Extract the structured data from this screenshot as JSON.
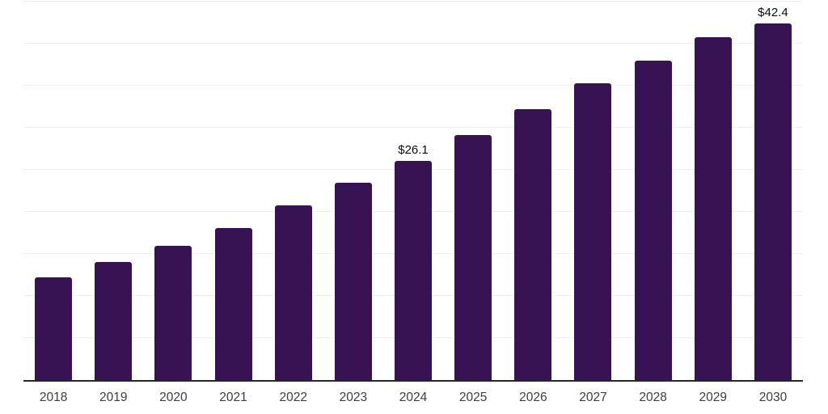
{
  "chart_data": {
    "type": "bar",
    "title": "",
    "xlabel": "",
    "ylabel": "",
    "categories": [
      "2018",
      "2019",
      "2020",
      "2021",
      "2022",
      "2023",
      "2024",
      "2025",
      "2026",
      "2027",
      "2028",
      "2029",
      "2030"
    ],
    "values": [
      12.2,
      14.0,
      16.0,
      18.1,
      20.8,
      23.5,
      26.1,
      29.1,
      32.2,
      35.3,
      38.0,
      40.8,
      42.4
    ],
    "value_labels": {
      "2024": "$26.1",
      "2030": "$42.4"
    },
    "ylim": [
      0,
      45
    ],
    "gridline_step": 5,
    "grid": "horizontal-only",
    "legend": "none",
    "colors": {
      "bar": "#371353",
      "gridline": "#f0f0f0",
      "axis_line": "#262626",
      "tick_label": "#3d3d3d",
      "value_label": "#0d0d0d",
      "background": "#ffffff"
    }
  }
}
